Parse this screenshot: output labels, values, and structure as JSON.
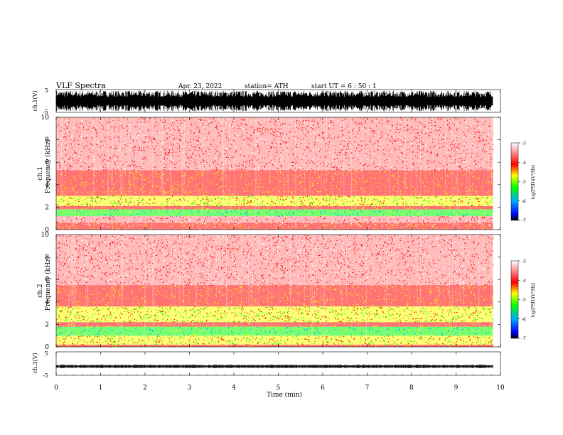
{
  "header": {
    "title": "VLF  Spectra",
    "date": "Apr. 23, 2022",
    "station": "station= ATH",
    "start": "start  UT  =    6  : 50 : 1"
  },
  "colors": {
    "waveform": "#000000",
    "background_noise": "#ffffff",
    "low_psd": "#ff8080",
    "mid_psd": "#ff0000",
    "high_psd": "#ffff00",
    "peak_psd": "#00ff00"
  },
  "chart_data": [
    {
      "type": "line",
      "name": "waveform-ch1",
      "ylabel": "ch.1(V)",
      "ylim": [
        -5,
        5
      ],
      "y_ticks": [
        "5",
        "-5"
      ],
      "amplitude_peak": 4.5,
      "x_range": [
        0,
        10
      ]
    },
    {
      "type": "heatmap",
      "name": "spectrogram-ch1",
      "ylabel": "ch.1\nFrequency  (kHz)",
      "ylim": [
        0,
        10
      ],
      "y_ticks": [
        "0",
        "2",
        "4",
        "6",
        "8",
        "10"
      ],
      "x_range": [
        0,
        9.83
      ],
      "bands": [
        {
          "from": 0.0,
          "to": 0.25,
          "level": -4.0
        },
        {
          "from": 0.25,
          "to": 0.6,
          "level": -3.6
        },
        {
          "from": 0.6,
          "to": 1.2,
          "level": -3.4
        },
        {
          "from": 1.2,
          "to": 1.8,
          "level": -5.0
        },
        {
          "from": 1.8,
          "to": 2.1,
          "level": -4.0
        },
        {
          "from": 2.1,
          "to": 3.0,
          "level": -4.6
        },
        {
          "from": 3.0,
          "to": 3.4,
          "level": -4.0
        },
        {
          "from": 3.4,
          "to": 5.3,
          "level": -3.8
        },
        {
          "from": 5.3,
          "to": 10.0,
          "level": -3.3
        }
      ],
      "colorbar": {
        "label": "log(PSD)(V²/Hz)",
        "ticks": [
          "-3",
          "-4",
          "-5",
          "-6",
          "-7"
        ],
        "range": [
          -7,
          -3
        ]
      }
    },
    {
      "type": "heatmap",
      "name": "spectrogram-ch2",
      "ylabel": "ch.2\nFrequency  (kHz)",
      "ylim": [
        0,
        10
      ],
      "y_ticks": [
        "0",
        "2",
        "4",
        "6",
        "8",
        "10"
      ],
      "x_range": [
        0,
        9.83
      ],
      "bands": [
        {
          "from": 0.0,
          "to": 0.2,
          "level": -4.0
        },
        {
          "from": 0.2,
          "to": 0.6,
          "level": -4.6
        },
        {
          "from": 0.6,
          "to": 1.0,
          "level": -4.2
        },
        {
          "from": 1.0,
          "to": 1.8,
          "level": -5.0
        },
        {
          "from": 1.8,
          "to": 2.2,
          "level": -4.0
        },
        {
          "from": 2.2,
          "to": 3.6,
          "level": -4.6
        },
        {
          "from": 3.6,
          "to": 5.5,
          "level": -3.9
        },
        {
          "from": 5.5,
          "to": 10.0,
          "level": -3.3
        }
      ],
      "colorbar": {
        "label": "log(PSD)(V²/Hz)",
        "ticks": [
          "-3",
          "-4",
          "-5",
          "-6",
          "-7"
        ],
        "range": [
          -7,
          -3
        ]
      }
    },
    {
      "type": "line",
      "name": "waveform-ch3",
      "ylabel": "ch.3(V)",
      "ylim": [
        -5,
        5
      ],
      "y_ticks": [
        "5",
        "-5"
      ],
      "baseline": -1.2,
      "amplitude_peak": 0.3,
      "x_range": [
        0,
        10
      ]
    }
  ],
  "x_axis": {
    "label": "Time  (min)",
    "ticks": [
      "0",
      "1",
      "2",
      "3",
      "4",
      "5",
      "6",
      "7",
      "8",
      "9",
      "10"
    ],
    "range": [
      0,
      10
    ]
  }
}
